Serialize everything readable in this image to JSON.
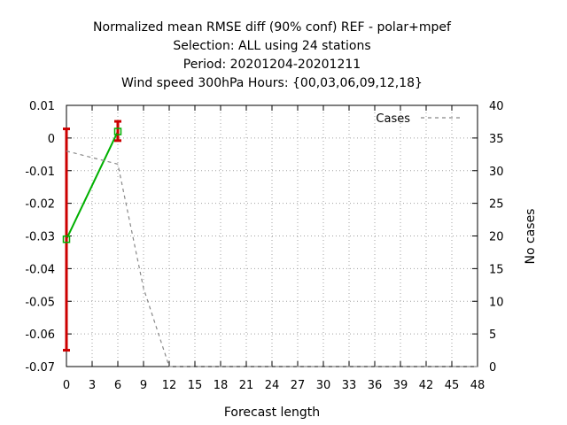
{
  "chart_data": {
    "type": "line",
    "title_lines": [
      "Normalized mean RMSE diff (90% conf) REF - polar+mpef",
      "Selection: ALL using    24 stations",
      "Period: 20201204-20201211",
      "Wind speed 300hPa   Hours: {00,03,06,09,12,18}"
    ],
    "xlabel": "Forecast length",
    "ylabel": "",
    "y2label": "No cases",
    "xlim": [
      0,
      48
    ],
    "ylim": [
      -0.07,
      0.01
    ],
    "y2lim": [
      0,
      40
    ],
    "x_ticks": [
      0,
      3,
      6,
      9,
      12,
      15,
      18,
      21,
      24,
      27,
      30,
      33,
      36,
      39,
      42,
      45,
      48
    ],
    "y_ticks": [
      -0.07,
      -0.06,
      -0.05,
      -0.04,
      -0.03,
      -0.02,
      -0.01,
      0,
      0.01
    ],
    "y2_ticks": [
      0,
      5,
      10,
      15,
      20,
      25,
      30,
      35,
      40
    ],
    "grid": true,
    "legend_position": "top-right",
    "series": [
      {
        "name": "",
        "axis": "left",
        "color": "#00b000",
        "x": [
          0,
          6
        ],
        "y": [
          -0.031,
          0.002
        ],
        "err_low": [
          -0.065,
          -0.0008
        ],
        "err_high": [
          0.0028,
          0.0051
        ],
        "err_color": "#cc0000"
      },
      {
        "name": "Cases",
        "axis": "right",
        "color": "#888888",
        "dashed": true,
        "x": [
          0,
          3,
          6,
          9,
          12,
          15,
          18,
          21,
          24,
          27,
          30,
          33,
          36,
          39,
          42,
          45,
          48
        ],
        "y": [
          33,
          32,
          31,
          12,
          0,
          0,
          0,
          0,
          0,
          0,
          0,
          0,
          0,
          0,
          0,
          0,
          0
        ]
      }
    ]
  }
}
